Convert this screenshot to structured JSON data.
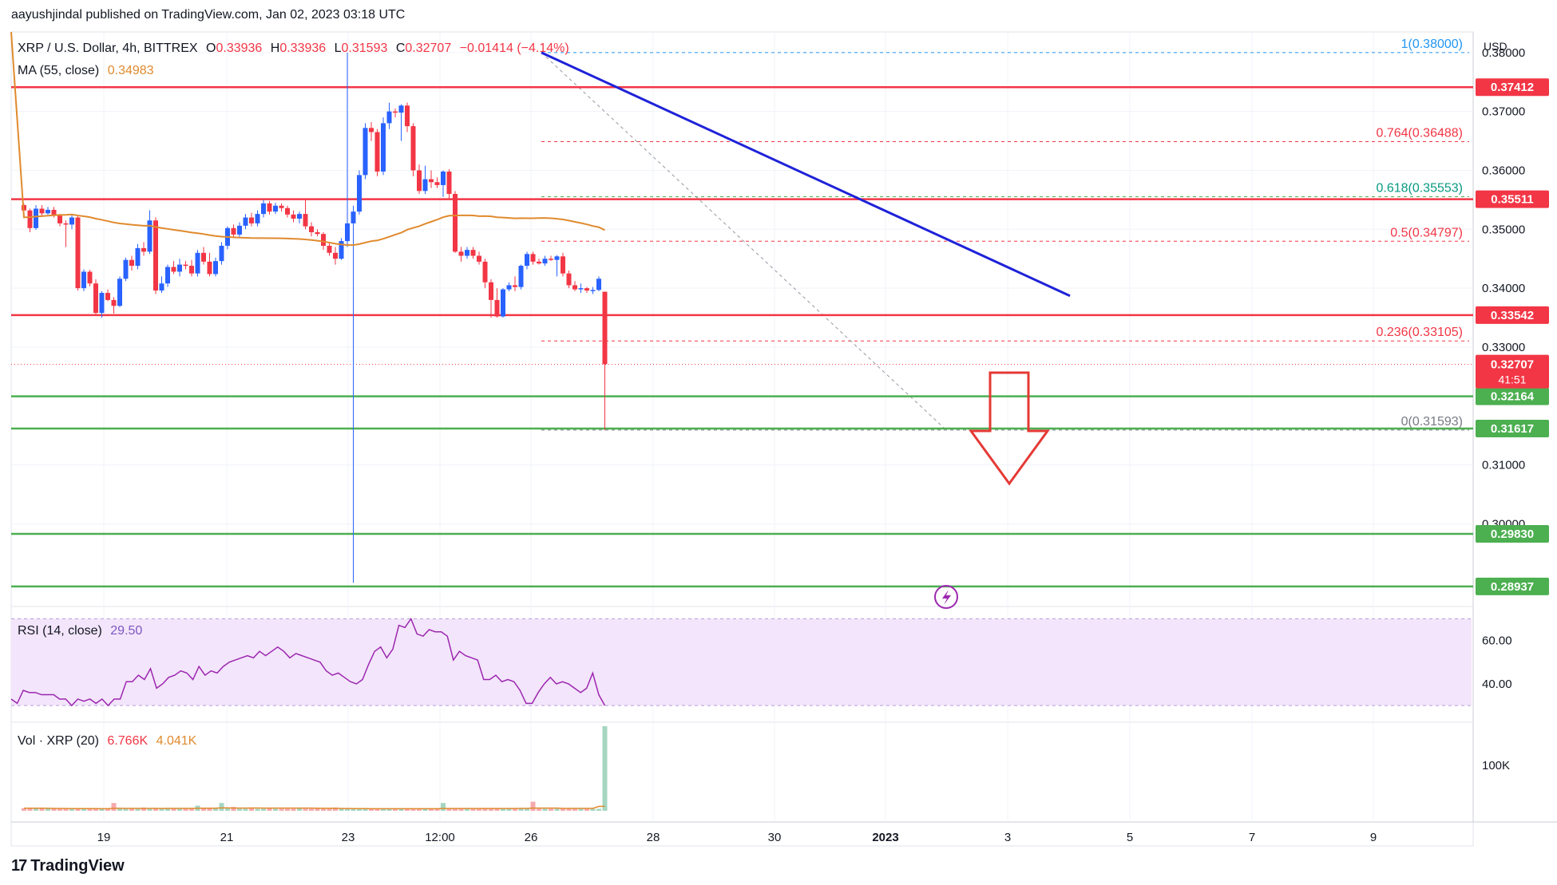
{
  "header": {
    "publisher": "aayushjindal published on TradingView.com, Jan 02, 2023 03:18 UTC"
  },
  "symbol": {
    "title": "XRP / U.S. Dollar, 4h, BITTREX",
    "open_label": "O",
    "open": "0.33936",
    "high_label": "H",
    "high": "0.33936",
    "low_label": "L",
    "low": "0.31593",
    "close_label": "C",
    "close": "0.32707",
    "change": "−0.01414 (−4.14%)"
  },
  "ma_legend": {
    "label": "MA (55, close)",
    "value": "0.34983"
  },
  "rsi_legend": {
    "label": "RSI (14, close)",
    "value": "29.50"
  },
  "vol_legend": {
    "label": "Vol · XRP (20)",
    "value": "6.766K",
    "ma_value": "4.041K"
  },
  "footer": {
    "brand": "TradingView",
    "logo_glyph": "17"
  },
  "colors": {
    "up": "#2962ff",
    "down": "#f23645",
    "ma": "#e08a2e",
    "resistance": "#f23645",
    "support": "#4caf50",
    "trendline": "#1e22d8",
    "rsi": "#9c27b0",
    "rsi_band": "#f3e5fb",
    "vol_up": "#a5d6c2",
    "vol_down": "#f7a9ae"
  },
  "chart_data": {
    "type": "candlestick",
    "currency_label": "USD",
    "y_axis_ticks": [
      "0.38000",
      "0.37000",
      "0.36000",
      "0.35000",
      "0.34000",
      "0.33000",
      "0.31000",
      "0.30000"
    ],
    "x_axis_ticks": [
      "19",
      "21",
      "23",
      "12:00",
      "26",
      "28",
      "30",
      "2023",
      "3",
      "5",
      "7",
      "9"
    ],
    "ylim": [
      0.288,
      0.3835
    ],
    "resistance_levels": [
      {
        "value": 0.37412,
        "label": "0.37412"
      },
      {
        "value": 0.35511,
        "label": "0.35511"
      },
      {
        "value": 0.33542,
        "label": "0.33542"
      }
    ],
    "support_levels": [
      {
        "value": 0.32164,
        "label": "0.32164"
      },
      {
        "value": 0.31617,
        "label": "0.31617"
      },
      {
        "value": 0.2983,
        "label": "0.29830"
      },
      {
        "value": 0.28937,
        "label": "0.28937"
      }
    ],
    "last_price": {
      "value": 0.32707,
      "label": "0.32707",
      "countdown": "41:51"
    },
    "fibonacci": [
      {
        "ratio": 1,
        "value": 0.38,
        "label": "1(0.38000)"
      },
      {
        "ratio": 0.764,
        "value": 0.36488,
        "label": "0.764(0.36488)"
      },
      {
        "ratio": 0.618,
        "value": 0.35553,
        "label": "0.618(0.35553)"
      },
      {
        "ratio": 0.5,
        "value": 0.34797,
        "label": "0.5(0.34797)"
      },
      {
        "ratio": 0.236,
        "value": 0.33105,
        "label": "0.236(0.33105)"
      },
      {
        "ratio": 0,
        "value": 0.31593,
        "label": "0(0.31593)"
      }
    ],
    "trendline": {
      "start": {
        "bar": 96,
        "value": 0.38
      },
      "end": {
        "bar": 171,
        "value": 0.3387
      }
    },
    "rsi": {
      "ticks": [
        "60.00",
        "40.00"
      ],
      "band": [
        30,
        70
      ],
      "ylim": [
        26,
        72
      ],
      "values": [
        33,
        31,
        37,
        36,
        36,
        35,
        35,
        35,
        33,
        33,
        30,
        33,
        32,
        33,
        31,
        33,
        30,
        33,
        33,
        41,
        41,
        44,
        42,
        47,
        38,
        40,
        43,
        44,
        46,
        45,
        42,
        48,
        44,
        46,
        45,
        48,
        50,
        51,
        52,
        53,
        52,
        55,
        53,
        55,
        57,
        55,
        52,
        54,
        53,
        52,
        51,
        50,
        46,
        44,
        45,
        43,
        41,
        40,
        42,
        49,
        55,
        57,
        52,
        56,
        67,
        66,
        70,
        63,
        62,
        65,
        64,
        64,
        62,
        51,
        55,
        53,
        52,
        51,
        42,
        42,
        44,
        41,
        42,
        41,
        37,
        31,
        31,
        36,
        40,
        43,
        40,
        41,
        40,
        38,
        36,
        38,
        45,
        35,
        30
      ]
    },
    "volume": {
      "ticks": [
        "100K"
      ],
      "max": 130,
      "values": [
        4,
        4,
        4,
        4,
        3,
        3,
        3,
        3,
        3,
        3,
        3,
        3,
        3,
        3,
        3,
        12,
        3,
        3,
        3,
        3,
        5,
        3,
        4,
        3,
        4,
        3,
        3,
        3,
        3,
        8,
        4,
        4,
        3,
        12,
        4,
        6,
        3,
        3,
        4,
        3,
        3,
        4,
        3,
        3,
        3,
        3,
        4,
        3,
        3,
        4,
        3,
        3,
        5,
        3,
        3,
        3,
        3,
        3,
        3,
        3,
        3,
        3,
        3,
        3,
        3,
        3,
        3,
        4,
        3,
        3,
        12,
        3,
        3,
        3,
        3,
        4,
        3,
        3,
        3,
        3,
        4,
        3,
        3,
        4,
        3,
        14,
        3,
        3,
        3,
        3,
        3,
        3,
        3,
        3,
        4,
        3,
        3,
        7,
        3,
        3,
        24,
        3,
        5,
        3,
        6,
        3,
        3,
        3,
        3,
        3,
        3,
        3,
        3,
        3,
        3,
        3,
        3,
        3,
        4,
        3,
        3,
        3,
        3,
        3,
        3,
        3,
        4,
        3,
        3,
        3,
        3,
        3,
        3,
        3,
        3,
        3,
        3,
        3,
        4,
        3,
        3,
        3,
        3,
        3,
        3,
        3,
        3,
        3,
        3,
        3,
        3,
        3,
        3,
        3,
        4,
        3,
        3,
        3,
        3,
        3,
        3,
        3,
        3,
        3,
        3,
        3,
        3,
        3,
        3,
        3,
        3,
        3,
        3,
        3,
        3,
        3,
        3,
        3,
        3,
        3,
        3,
        3,
        3,
        3
      ],
      "spikes": [
        {
          "bar": 105,
          "value": 86
        },
        {
          "bar": 114,
          "value": 130
        },
        {
          "bar": 121,
          "value": 130
        },
        {
          "bar": 100,
          "value": 30
        }
      ]
    },
    "price_bars": [
      [
        0.3541,
        0.3543,
        0.3528,
        0.3532
      ],
      [
        0.3532,
        0.3535,
        0.3495,
        0.3502
      ],
      [
        0.3502,
        0.3541,
        0.3499,
        0.3535
      ],
      [
        0.3535,
        0.3541,
        0.3522,
        0.3527
      ],
      [
        0.3527,
        0.3538,
        0.3525,
        0.3533
      ],
      [
        0.3533,
        0.3538,
        0.352,
        0.3523
      ],
      [
        0.3523,
        0.3526,
        0.3505,
        0.351
      ],
      [
        0.351,
        0.3515,
        0.347,
        0.3508
      ],
      [
        0.3508,
        0.3524,
        0.35,
        0.352
      ],
      [
        0.352,
        0.3522,
        0.3396,
        0.34
      ],
      [
        0.34,
        0.3432,
        0.3395,
        0.3428
      ],
      [
        0.3428,
        0.3431,
        0.3403,
        0.3408
      ],
      [
        0.3408,
        0.3415,
        0.3353,
        0.3358
      ],
      [
        0.3358,
        0.3395,
        0.335,
        0.3392
      ],
      [
        0.3392,
        0.3398,
        0.3378,
        0.338
      ],
      [
        0.338,
        0.3385,
        0.3357,
        0.337
      ],
      [
        0.337,
        0.342,
        0.3368,
        0.3416
      ],
      [
        0.3416,
        0.3452,
        0.3412,
        0.3448
      ],
      [
        0.3448,
        0.3455,
        0.343,
        0.3438
      ],
      [
        0.3438,
        0.3475,
        0.3432,
        0.3468
      ],
      [
        0.3468,
        0.3478,
        0.3455,
        0.3462
      ],
      [
        0.3462,
        0.3532,
        0.3458,
        0.3515
      ],
      [
        0.3515,
        0.352,
        0.339,
        0.3396
      ],
      [
        0.3396,
        0.342,
        0.3392,
        0.3408
      ],
      [
        0.3408,
        0.344,
        0.3402,
        0.3436
      ],
      [
        0.3436,
        0.3446,
        0.3424,
        0.3428
      ],
      [
        0.3428,
        0.345,
        0.342,
        0.344
      ],
      [
        0.344,
        0.3446,
        0.3432,
        0.3438
      ],
      [
        0.3438,
        0.3448,
        0.342,
        0.3425
      ],
      [
        0.3425,
        0.3465,
        0.342,
        0.346
      ],
      [
        0.346,
        0.347,
        0.344,
        0.3445
      ],
      [
        0.3445,
        0.346,
        0.342,
        0.3424
      ],
      [
        0.3424,
        0.3452,
        0.342,
        0.3446
      ],
      [
        0.3446,
        0.3478,
        0.344,
        0.3472
      ],
      [
        0.3472,
        0.3505,
        0.3466,
        0.3502
      ],
      [
        0.3502,
        0.3508,
        0.3485,
        0.3491
      ],
      [
        0.3491,
        0.3512,
        0.3486,
        0.3506
      ],
      [
        0.3506,
        0.3526,
        0.35,
        0.352
      ],
      [
        0.352,
        0.3528,
        0.3505,
        0.351
      ],
      [
        0.351,
        0.3532,
        0.3505,
        0.3526
      ],
      [
        0.3526,
        0.355,
        0.352,
        0.3544
      ],
      [
        0.3544,
        0.3548,
        0.3525,
        0.353
      ],
      [
        0.353,
        0.3545,
        0.3526,
        0.354
      ],
      [
        0.354,
        0.3544,
        0.353,
        0.3536
      ],
      [
        0.3536,
        0.354,
        0.352,
        0.3525
      ],
      [
        0.3525,
        0.3532,
        0.3512,
        0.3518
      ],
      [
        0.3518,
        0.353,
        0.351,
        0.3526
      ],
      [
        0.3526,
        0.355,
        0.35,
        0.3505
      ],
      [
        0.3505,
        0.3512,
        0.3488,
        0.3495
      ],
      [
        0.3495,
        0.35,
        0.3488,
        0.3492
      ],
      [
        0.3492,
        0.3495,
        0.3465,
        0.3472
      ],
      [
        0.3472,
        0.3478,
        0.3455,
        0.346
      ],
      [
        0.346,
        0.347,
        0.344,
        0.345
      ],
      [
        0.345,
        0.3485,
        0.3448,
        0.348
      ],
      [
        0.348,
        0.38,
        0.347,
        0.351
      ],
      [
        0.351,
        0.354,
        0.29,
        0.353
      ],
      [
        0.353,
        0.36,
        0.3525,
        0.3592
      ],
      [
        0.3592,
        0.368,
        0.3585,
        0.3672
      ],
      [
        0.3672,
        0.3682,
        0.365,
        0.3665
      ],
      [
        0.3665,
        0.367,
        0.359,
        0.3598
      ],
      [
        0.3598,
        0.369,
        0.3592,
        0.368
      ],
      [
        0.368,
        0.3715,
        0.367,
        0.37
      ],
      [
        0.37,
        0.3705,
        0.369,
        0.3698
      ],
      [
        0.3698,
        0.3712,
        0.365,
        0.371
      ],
      [
        0.371,
        0.3715,
        0.3665,
        0.3675
      ],
      [
        0.3675,
        0.368,
        0.359,
        0.36
      ],
      [
        0.36,
        0.361,
        0.356,
        0.3565
      ],
      [
        0.3565,
        0.3608,
        0.356,
        0.3585
      ],
      [
        0.3585,
        0.36,
        0.357,
        0.358
      ],
      [
        0.358,
        0.3588,
        0.357,
        0.3575
      ],
      [
        0.3575,
        0.36,
        0.3555,
        0.3598
      ],
      [
        0.3598,
        0.3602,
        0.355,
        0.356
      ],
      [
        0.356,
        0.3565,
        0.346,
        0.3462
      ],
      [
        0.3462,
        0.347,
        0.3445,
        0.3455
      ],
      [
        0.3455,
        0.347,
        0.345,
        0.3465
      ],
      [
        0.3465,
        0.347,
        0.345,
        0.3455
      ],
      [
        0.3455,
        0.3462,
        0.344,
        0.3445
      ],
      [
        0.3445,
        0.345,
        0.34,
        0.341
      ],
      [
        0.341,
        0.3415,
        0.335,
        0.338
      ],
      [
        0.338,
        0.34,
        0.335,
        0.3352
      ],
      [
        0.3352,
        0.34,
        0.335,
        0.3398
      ],
      [
        0.3398,
        0.341,
        0.3395,
        0.3405
      ],
      [
        0.3405,
        0.342,
        0.3395,
        0.3402
      ],
      [
        0.3402,
        0.344,
        0.3398,
        0.3438
      ],
      [
        0.3438,
        0.3462,
        0.3432,
        0.3458
      ],
      [
        0.3458,
        0.3462,
        0.344,
        0.3445
      ],
      [
        0.3445,
        0.345,
        0.344,
        0.3442
      ],
      [
        0.3442,
        0.3455,
        0.3438,
        0.345
      ],
      [
        0.345,
        0.3455,
        0.3446,
        0.3448
      ],
      [
        0.3448,
        0.3456,
        0.342,
        0.3454
      ],
      [
        0.3454,
        0.346,
        0.342,
        0.3425
      ],
      [
        0.3425,
        0.343,
        0.34,
        0.3405
      ],
      [
        0.3405,
        0.3412,
        0.3395,
        0.3398
      ],
      [
        0.3398,
        0.3408,
        0.3392,
        0.34
      ],
      [
        0.34,
        0.3402,
        0.3392,
        0.3396
      ],
      [
        0.3396,
        0.3402,
        0.339,
        0.3397
      ],
      [
        0.3397,
        0.342,
        0.3395,
        0.3416
      ],
      [
        0.3394,
        0.3394,
        0.3159,
        0.3271
      ]
    ]
  }
}
